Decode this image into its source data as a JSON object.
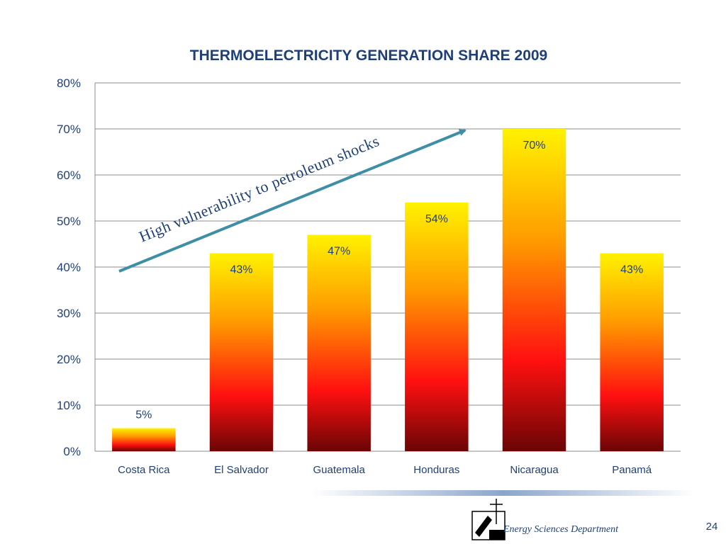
{
  "chart_data": {
    "type": "bar",
    "title": "THERMOELECTRICITY GENERATION SHARE 2009",
    "categories": [
      "Costa Rica",
      "El Salvador",
      "Guatemala",
      "Honduras",
      "Nicaragua",
      "Panamá"
    ],
    "values": [
      5,
      43,
      47,
      54,
      70,
      43
    ],
    "data_labels": [
      "5%",
      "43%",
      "47%",
      "54%",
      "70%",
      "43%"
    ],
    "y_ticks": [
      "0%",
      "10%",
      "20%",
      "30%",
      "40%",
      "50%",
      "60%",
      "70%",
      "80%"
    ],
    "ylim": [
      0,
      80
    ],
    "grid": true,
    "annotation": "High  vulnerability to petroleum shocks"
  },
  "footer": {
    "department": "Energy Sciences Department",
    "page_number": "24"
  },
  "colors": {
    "text": "#1F3F78",
    "arrow": "#3E8FA6",
    "grid": "#8C8C8C",
    "bar_top": "#FFF200",
    "bar_mid": "#FF9A00",
    "bar_red": "#FF1010",
    "bar_bottom": "#6A0505"
  }
}
